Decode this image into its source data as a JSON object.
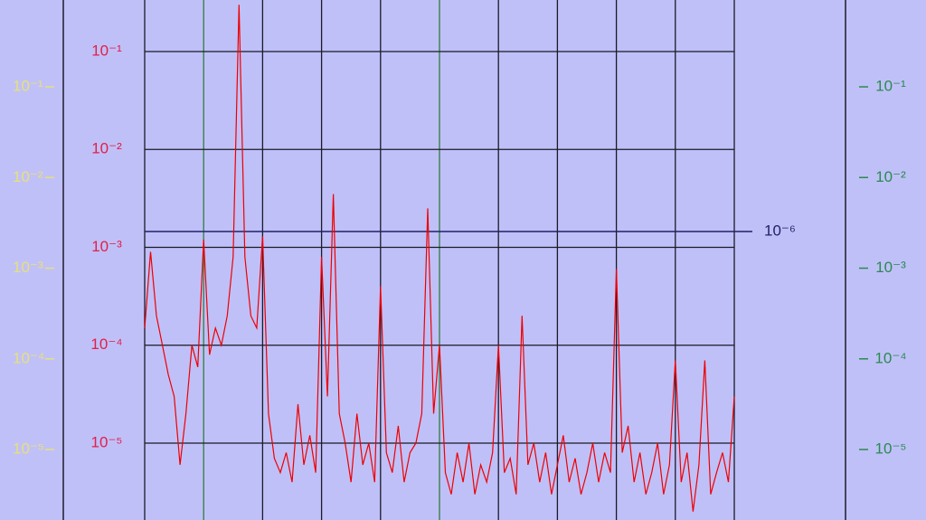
{
  "chart_data": {
    "type": "line",
    "log_scale": true,
    "grid": true,
    "grid_color": "#1a1a2a",
    "highlight_xticks": [
      1,
      5
    ],
    "highlight_color": "#2e7d3e",
    "xlim": [
      0,
      10
    ],
    "xticks": [
      0,
      1,
      2,
      3,
      4,
      5,
      6,
      7,
      8,
      9,
      10
    ],
    "ylim": [
      1.64e-06,
      0.336
    ],
    "yticks": [
      {
        "value": 0.1,
        "label": "10⁻¹"
      },
      {
        "value": 0.01,
        "label": "10⁻²"
      },
      {
        "value": 0.001,
        "label": "10⁻³"
      },
      {
        "value": 0.0001,
        "label": "10⁻⁴"
      },
      {
        "value": 1e-05,
        "label": "10⁻⁵"
      }
    ],
    "ytick_color": "#e0204a",
    "left_axis": {
      "lim": [
        1.67e-06,
        0.907
      ],
      "color": "#e6e07a",
      "ticks": [
        {
          "value": 0.1,
          "label": "10⁻¹"
        },
        {
          "value": 0.01,
          "label": "10⁻²"
        },
        {
          "value": 0.001,
          "label": "10⁻³"
        },
        {
          "value": 0.0001,
          "label": "10⁻⁴"
        },
        {
          "value": 1e-05,
          "label": "10⁻⁵"
        }
      ]
    },
    "right_axis": {
      "lim": [
        1.67e-06,
        0.907
      ],
      "color": "#2a8a50",
      "ticks": [
        {
          "value": 0.1,
          "label": "10⁻¹"
        },
        {
          "value": 0.01,
          "label": "10⁻²"
        },
        {
          "value": 0.001,
          "label": "10⁻³"
        },
        {
          "value": 0.0001,
          "label": "10⁻⁴"
        },
        {
          "value": 1e-05,
          "label": "10⁻⁵"
        }
      ]
    },
    "reference_line": {
      "value": 1e-06,
      "label": "10⁻⁶",
      "color": "#20206a"
    },
    "x": [
      0,
      0.1,
      0.2,
      0.3,
      0.4,
      0.5,
      0.6,
      0.7,
      0.8,
      0.9,
      1,
      1.1,
      1.2,
      1.3,
      1.4,
      1.5,
      1.6,
      1.7,
      1.8,
      1.9,
      2,
      2.1,
      2.2,
      2.3,
      2.4,
      2.5,
      2.6,
      2.7,
      2.8,
      2.9,
      3,
      3.1,
      3.2,
      3.3,
      3.4,
      3.5,
      3.6,
      3.7,
      3.8,
      3.9,
      4,
      4.1,
      4.2,
      4.3,
      4.4,
      4.5,
      4.6,
      4.7,
      4.8,
      4.9,
      5,
      5.1,
      5.2,
      5.3,
      5.4,
      5.5,
      5.6,
      5.7,
      5.8,
      5.9,
      6,
      6.1,
      6.2,
      6.3,
      6.4,
      6.5,
      6.6,
      6.7,
      6.8,
      6.9,
      7,
      7.1,
      7.2,
      7.3,
      7.4,
      7.5,
      7.6,
      7.7,
      7.8,
      7.9,
      8,
      8.1,
      8.2,
      8.3,
      8.4,
      8.5,
      8.6,
      8.7,
      8.8,
      8.9,
      9,
      9.1,
      9.2,
      9.3,
      9.4,
      9.5,
      9.6,
      9.7,
      9.8,
      9.9,
      10
    ],
    "series": [
      {
        "color": "#ee0000",
        "values": [
          0.00015,
          0.0009,
          0.0002,
          0.0001,
          5e-05,
          3e-05,
          6e-06,
          2e-05,
          0.0001,
          6e-05,
          0.0012,
          8e-05,
          0.00015,
          0.0001,
          0.0002,
          0.0008,
          0.3,
          0.0008,
          0.0002,
          0.00015,
          0.0013,
          2e-05,
          7e-06,
          5e-06,
          8e-06,
          4e-06,
          2.5e-05,
          6e-06,
          1.2e-05,
          5e-06,
          0.0008,
          3e-05,
          0.0035,
          2e-05,
          1e-05,
          4e-06,
          2e-05,
          6e-06,
          1e-05,
          4e-06,
          0.0004,
          8e-06,
          5e-06,
          1.5e-05,
          4e-06,
          8e-06,
          1e-05,
          2e-05,
          0.0025,
          2e-05,
          0.0001,
          5e-06,
          3e-06,
          8e-06,
          4e-06,
          1e-05,
          3e-06,
          6e-06,
          4e-06,
          8e-06,
          0.0001,
          5e-06,
          7e-06,
          3e-06,
          0.0002,
          6e-06,
          1e-05,
          4e-06,
          8e-06,
          3e-06,
          6e-06,
          1.2e-05,
          4e-06,
          7e-06,
          3e-06,
          5e-06,
          1e-05,
          4e-06,
          8e-06,
          5e-06,
          0.0006,
          8e-06,
          1.5e-05,
          4e-06,
          8e-06,
          3e-06,
          5e-06,
          1e-05,
          3e-06,
          6e-06,
          7e-05,
          4e-06,
          8e-06,
          2e-06,
          6e-06,
          7e-05,
          3e-06,
          5e-06,
          8e-06,
          4e-06,
          3e-05
        ]
      }
    ]
  }
}
